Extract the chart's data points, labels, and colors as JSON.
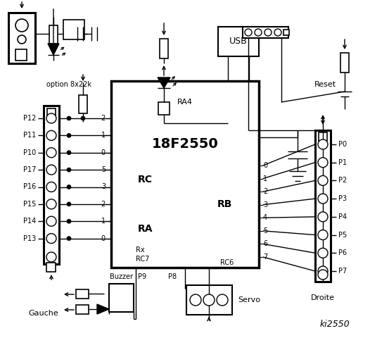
{
  "bg_color": "#ffffff",
  "line_color": "#000000",
  "chip_label": "18F2550",
  "chip_sublabel": "RA4",
  "rc_label": "RC",
  "ra_label": "RA",
  "rb_label": "RB",
  "rc_pins": [
    "2",
    "1",
    "0"
  ],
  "ra_pins": [
    "5",
    "3",
    "2",
    "1",
    "0"
  ],
  "rb_pins": [
    "0",
    "1",
    "2",
    "3",
    "4",
    "5",
    "6",
    "7"
  ],
  "left_connector_labels": [
    "P12",
    "P11",
    "P10",
    "P17",
    "P16",
    "P15",
    "P14",
    "P13"
  ],
  "right_connector_labels": [
    "P0",
    "P1",
    "P2",
    "P3",
    "P4",
    "P5",
    "P6",
    "P7"
  ],
  "gauche_label": "Gauche",
  "droite_label": "Droite",
  "usb_label": "USB",
  "reset_label": "Reset",
  "buzzer_label": "Buzzer",
  "p9_label": "P9",
  "p8_label": "P8",
  "servo_label": "Servo",
  "option_label": "option 8x22k",
  "ki_label": "ki2550",
  "rc7_label": "Rx\nRC7",
  "rc6_label": "RC6"
}
